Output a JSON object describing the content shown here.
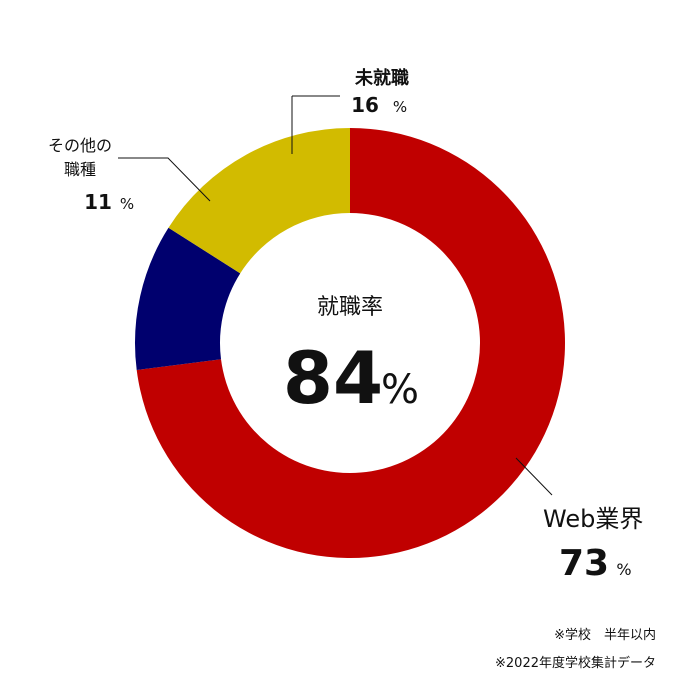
{
  "chart_data": {
    "type": "pie",
    "variant": "donut",
    "center_label": "就職率",
    "center_value": "84",
    "center_unit": "%",
    "unit": "%",
    "slices": [
      {
        "name": "Web業界",
        "value": 73,
        "color": "#c00000"
      },
      {
        "name": "その他の職種",
        "label_lines": [
          "その他の",
          "職種"
        ],
        "value": 11,
        "color": "#00006e"
      },
      {
        "name": "未就職",
        "value": 16,
        "color": "#d2bb00"
      }
    ]
  },
  "notes": [
    "※学校　半年以内",
    "※2022年度学校集計データ"
  ]
}
